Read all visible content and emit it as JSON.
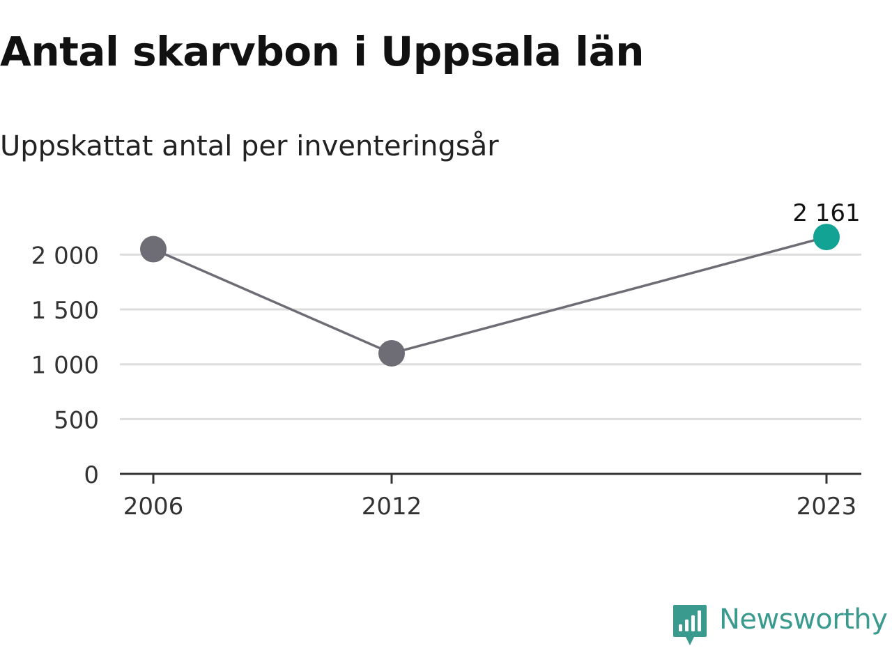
{
  "chart_data": {
    "type": "line",
    "title": "Antal skarvbon i Uppsala län",
    "subtitle": "Uppskattat antal per inventeringsår",
    "x": [
      "2006",
      "2012",
      "2023"
    ],
    "x_numeric": [
      2006,
      2012,
      2023
    ],
    "series": [
      {
        "values": [
          2050,
          1100,
          2161
        ]
      }
    ],
    "ylim": [
      0,
      2161
    ],
    "y_ticks": [
      0,
      500,
      1000,
      1500,
      2000
    ],
    "y_tick_labels": [
      "0",
      "500",
      "1 000",
      "1 500",
      "2 000"
    ],
    "x_tick_labels": [
      "2006",
      "2012",
      "2023"
    ],
    "highlight_label": "2 161",
    "grid": true,
    "colors": {
      "line": "#6e6d75",
      "point": "#6e6d75",
      "highlight_point": "#12a394",
      "grid": "#dddddd",
      "axis": "#333333"
    }
  },
  "brand": {
    "name": "Newsworthy",
    "color": "#3a9a8e",
    "icon": "newsworthy-logo-icon"
  }
}
